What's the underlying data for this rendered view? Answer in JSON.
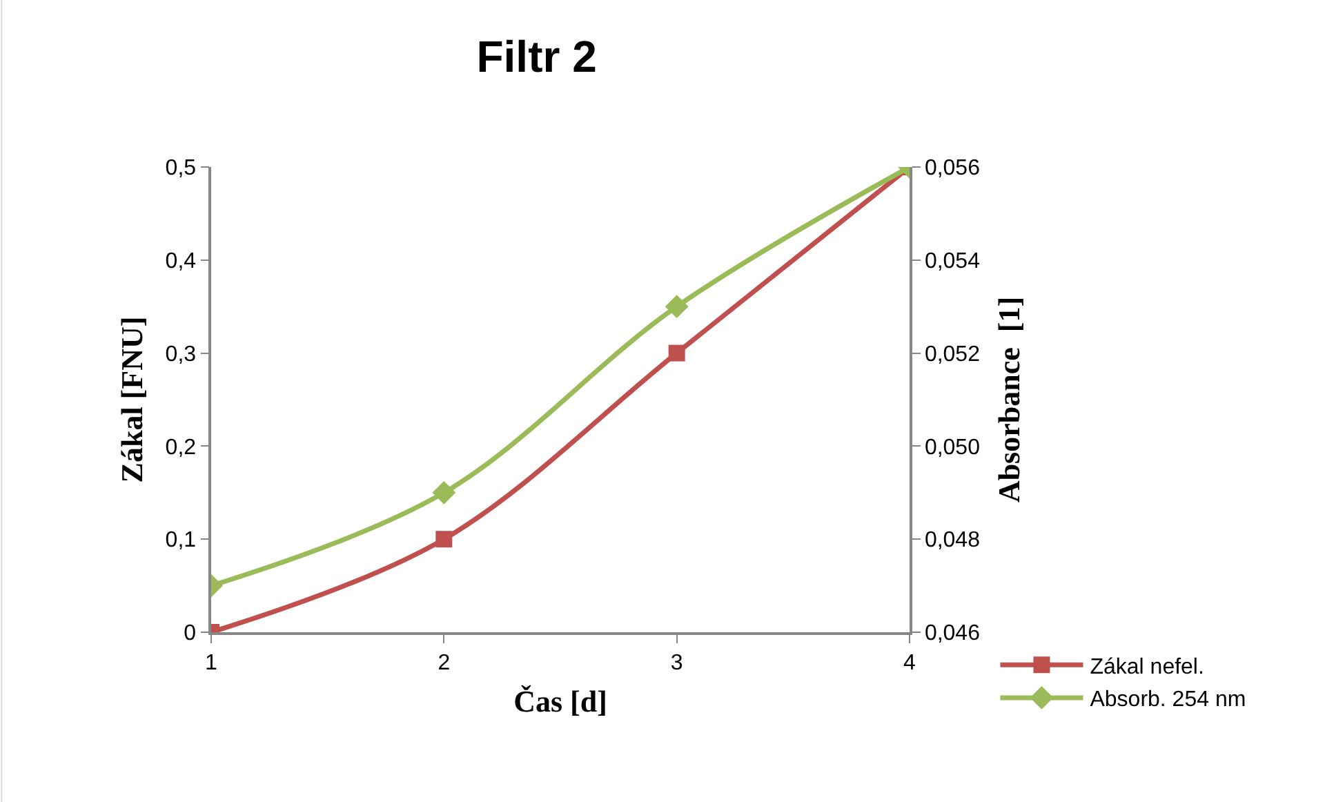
{
  "chart_data": {
    "type": "line",
    "title": "Filtr 2",
    "xlabel": "Čas [d]",
    "ylabel": "Zákal [FNU]",
    "y2label": "Absorbance  [1]",
    "x": [
      1,
      2,
      3,
      4
    ],
    "series": [
      {
        "name": "Zákal nefel.",
        "color": "#c0504d",
        "values": [
          0,
          0.1,
          0.3,
          0.5
        ],
        "marker": "square"
      },
      {
        "name": "Absorb. 254 nm",
        "color": "#9bbb59",
        "values": [
          0.047,
          0.049,
          0.053,
          0.056
        ],
        "marker": "diamond",
        "axis": "y2"
      }
    ],
    "xlim": [
      1,
      4
    ],
    "xticks": [
      1,
      2,
      3,
      4
    ],
    "ylim": [
      0,
      0.5
    ],
    "yticks": [
      {
        "value": 0,
        "label": "0"
      },
      {
        "value": 0.1,
        "label": "0,1"
      },
      {
        "value": 0.2,
        "label": "0,2"
      },
      {
        "value": 0.3,
        "label": "0,3"
      },
      {
        "value": 0.4,
        "label": "0,4"
      },
      {
        "value": 0.5,
        "label": "0,5"
      }
    ],
    "y2lim": [
      0.046,
      0.056
    ],
    "y2ticks": [
      {
        "value": 0.046,
        "label": "0,046"
      },
      {
        "value": 0.048,
        "label": "0,048"
      },
      {
        "value": 0.05,
        "label": "0,050"
      },
      {
        "value": 0.052,
        "label": "0,052"
      },
      {
        "value": 0.054,
        "label": "0,054"
      },
      {
        "value": 0.056,
        "label": "0,056"
      }
    ],
    "legend": "bottom right",
    "line_style": "solid"
  }
}
